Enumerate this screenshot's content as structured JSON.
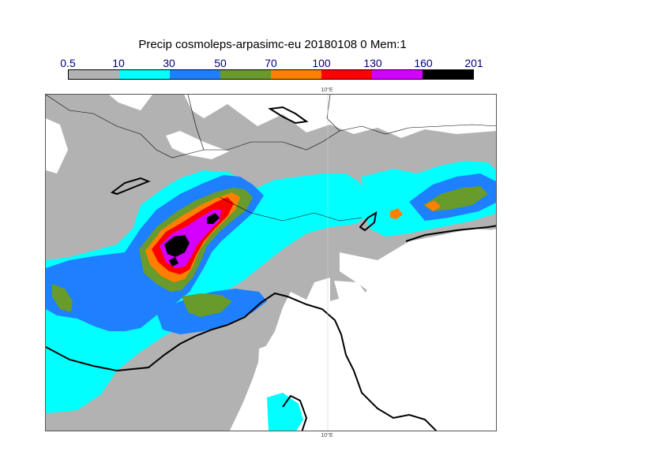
{
  "title": "Precip cosmoleps-arpasimc-eu 20180108 0 Mem:1",
  "legend": {
    "labels": [
      "0.5",
      "10",
      "30",
      "50",
      "70",
      "100",
      "130",
      "160",
      "201"
    ],
    "colors": [
      "#b2b2b2",
      "#00ffff",
      "#1e7fff",
      "#689b2b",
      "#ff8000",
      "#ff0000",
      "#d400ff",
      "#000000"
    ]
  },
  "map": {
    "meridian_label_top": "10°E",
    "meridian_label_bottom": "10°E",
    "background_color": "#ffffff",
    "coastline_color": "#000000",
    "border_color": "#555555"
  }
}
